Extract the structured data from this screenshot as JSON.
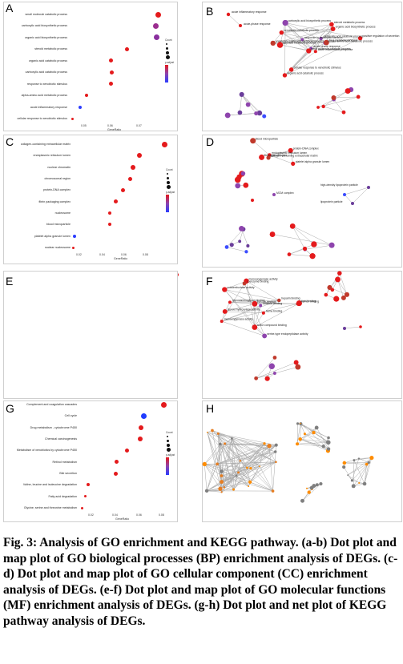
{
  "panels": {
    "A": {
      "label": "A",
      "xlabel": "GeneRatio",
      "xticks": [
        "0.05",
        "0.06",
        "0.07"
      ],
      "terms": [
        "small molecule catabolic process",
        "carboxylic acid biosynthetic process",
        "organic acid biosynthetic process",
        "steroid metabolic process",
        "organic acid catabolic process",
        "carboxylic acid catabolic process",
        "response to xenobiotic stimulus",
        "alpha-amino acid metabolic process",
        "acute inflammatory response",
        "cellular response to xenobiotic stimulus"
      ],
      "legend": {
        "count": "Count",
        "padj": "p.adjust"
      }
    },
    "B": {
      "label": "B"
    },
    "C": {
      "label": "C",
      "xlabel": "GeneRatio",
      "xticks": [
        "0.02",
        "0.04",
        "0.06",
        "0.08"
      ],
      "terms": [
        "collagen-containing extracellular matrix",
        "endoplasmic reticulum lumen",
        "nuclear chromatin",
        "chromosomal region",
        "protein-DNA complex",
        "fibrin packaging complex",
        "nucleosome",
        "blood microparticle",
        "platelet alpha granule lumen",
        "nuclear nucleosome"
      ],
      "legend": {
        "count": "Count",
        "padj": "p.adjust"
      }
    },
    "D": {
      "label": "D"
    },
    "E": {
      "label": "E"
    },
    "F": {
      "label": "F"
    },
    "G": {
      "label": "G",
      "xlabel": "GeneRatio",
      "xticks": [
        "0.02",
        "0.04",
        "0.06",
        "0.08"
      ],
      "terms": [
        "Complement and coagulation cascades",
        "Cell cycle",
        "Drug metabolism - cytochrome P450",
        "Chemical carcinogenesis",
        "Metabolism of xenobiotics by cytochrome P450",
        "Retinol metabolism",
        "Bile secretion",
        "Valine, leucine and isoleucine degradation",
        "Fatty acid degradation",
        "Glycine, serine and threonine metabolism"
      ],
      "legend": {
        "count": "Count",
        "padj": "p.adjust"
      }
    },
    "H": {
      "label": "H"
    }
  },
  "network_labels": {
    "B": [
      "acute inflammatory response",
      "acute-phase response",
      "cellular amino acid metabolic process",
      "steroid metabolic process",
      "organic acid biosynthetic process",
      "carboxylic acid biosynthetic process",
      "fatty acid metabolic process",
      "small molecule catabolic process",
      "organic acid catabolic process",
      "carboxylic acid catabolic process",
      "response to xenobiotic stimulus",
      "cellular response to xenobiotic stimulus",
      "drug metabolic process",
      "xenobiotic metabolic process",
      "unsaturated fatty acid metabolic process",
      "positive regulation of secretion"
    ],
    "D": [
      "endoplasmic reticulum lumen",
      "blood microparticle",
      "platelet alpha granule lumen",
      "collagen-containing extracellular matrix",
      "fibrinogen complex",
      "protein-DNA complex",
      "nucleosome",
      "chromosomal region",
      "nuclear chromatin",
      "nuclear nucleosome",
      "MCM complex",
      "high-density lipoprotein particle",
      "lipoprotein particle"
    ],
    "F": [
      "monooxygenase activity",
      "iron ion binding",
      "heme binding",
      "oxidoreductase activity",
      "steroid hydroxylase activity",
      "cofactor binding",
      "coenzyme binding",
      "serine-type endopeptidase activity",
      "sulfur compound binding",
      "heparin binding",
      "glycosaminoglycan binding",
      "lipid binding"
    ]
  },
  "caption": {
    "prefix": "Fig. 3:",
    "text": "Analysis of GO enrichment and KEGG pathway. (a-b) Dot plot and map plot of GO biological processes (BP) enrichment analysis of DEGs. (c-d) Dot plot and map plot of GO cellular component (CC) enrichment analysis of DEGs. (e-f) Dot plot and map plot of GO molecular functions (MF) enrichment analysis of DEGs. (g-h) Dot plot and net plot of KEGG pathway analysis of DEGs."
  }
}
